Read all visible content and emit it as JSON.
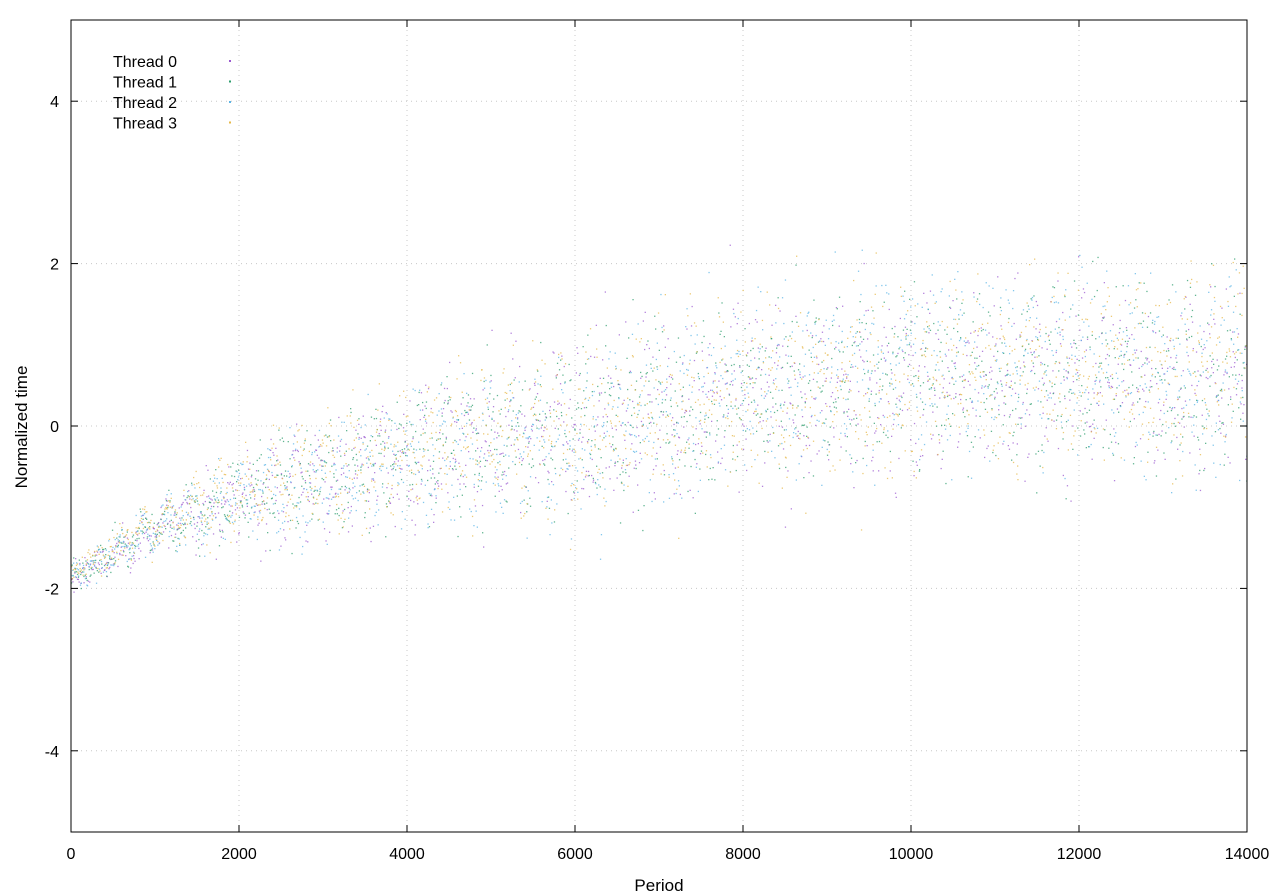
{
  "chart_data": {
    "type": "scatter",
    "xlabel": "Period",
    "ylabel": "Normalized time",
    "xlim": [
      0,
      14000
    ],
    "ylim": [
      -5,
      5
    ],
    "xticks": [
      0,
      2000,
      4000,
      6000,
      8000,
      10000,
      12000,
      14000
    ],
    "yticks": [
      -4,
      -2,
      0,
      2,
      4
    ],
    "xtick_labels": [
      "0",
      "2000",
      "4000",
      "6000",
      "8000",
      "10000",
      "12000",
      "14000"
    ],
    "ytick_labels": [
      "-4",
      "-2",
      "0",
      "2",
      "4"
    ],
    "grid": true,
    "legend_position": "top-left",
    "series": [
      {
        "name": "Thread 0",
        "color": "#9b59d0",
        "trend": [
          [
            0,
            -1.9
          ],
          [
            1000,
            -1.3
          ],
          [
            2000,
            -0.9
          ],
          [
            4000,
            -0.4
          ],
          [
            6000,
            0.1
          ],
          [
            8000,
            0.3
          ],
          [
            10000,
            0.5
          ],
          [
            12000,
            0.6
          ],
          [
            14000,
            0.6
          ]
        ]
      },
      {
        "name": "Thread 1",
        "color": "#2e9e6e",
        "trend": [
          [
            0,
            -1.85
          ],
          [
            1000,
            -1.25
          ],
          [
            2000,
            -0.85
          ],
          [
            4000,
            -0.35
          ],
          [
            6000,
            0.0
          ],
          [
            8000,
            0.4
          ],
          [
            10000,
            0.6
          ],
          [
            12000,
            0.65
          ],
          [
            14000,
            0.7
          ]
        ]
      },
      {
        "name": "Thread 2",
        "color": "#5bb4e5",
        "trend": [
          [
            0,
            -1.85
          ],
          [
            1000,
            -1.3
          ],
          [
            2000,
            -0.9
          ],
          [
            4000,
            -0.4
          ],
          [
            6000,
            -0.2
          ],
          [
            8000,
            0.5
          ],
          [
            10000,
            0.8
          ],
          [
            12000,
            0.7
          ],
          [
            14000,
            0.5
          ]
        ]
      },
      {
        "name": "Thread 3",
        "color": "#e6b84a",
        "trend": [
          [
            0,
            -1.8
          ],
          [
            1000,
            -1.2
          ],
          [
            2000,
            -0.8
          ],
          [
            4000,
            -0.3
          ],
          [
            6000,
            0.1
          ],
          [
            8000,
            0.3
          ],
          [
            10000,
            0.6
          ],
          [
            12000,
            0.7
          ],
          [
            14000,
            0.8
          ]
        ]
      }
    ]
  }
}
